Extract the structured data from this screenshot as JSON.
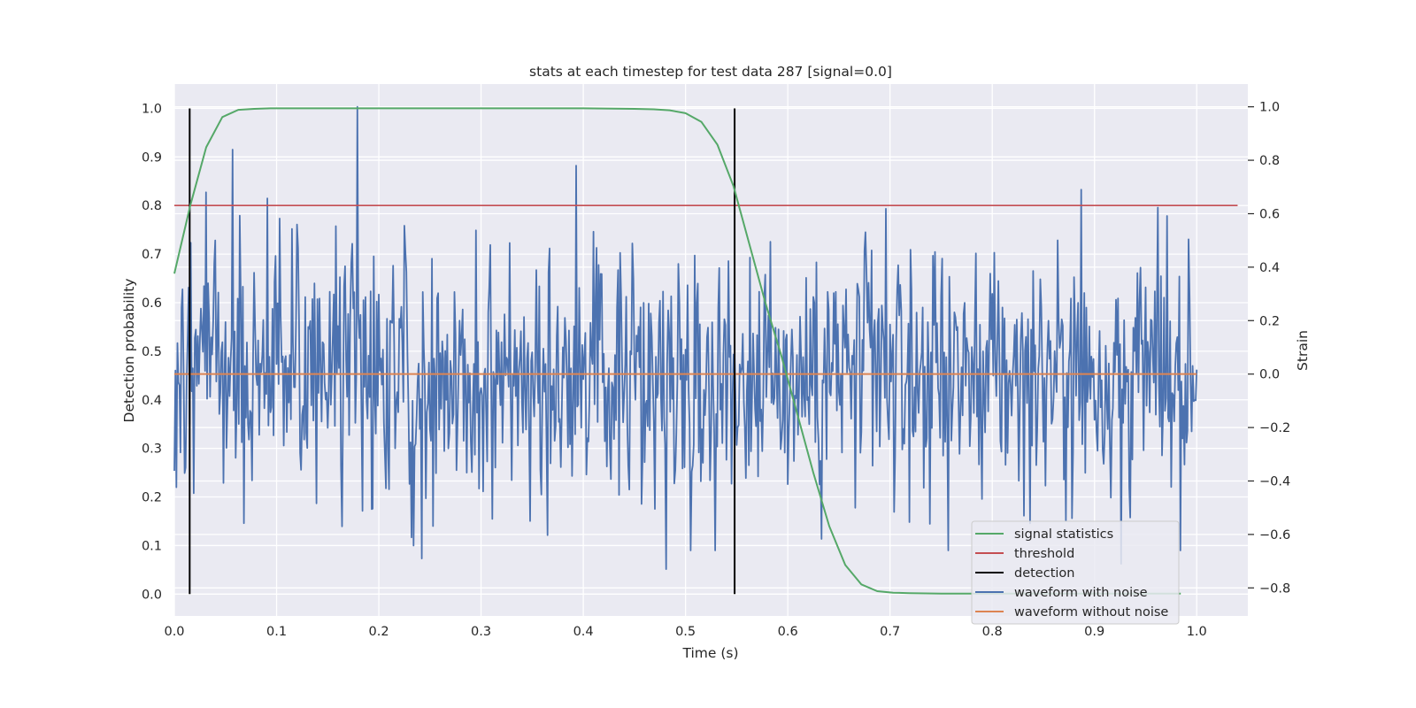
{
  "chart_data": {
    "type": "line",
    "title": "stats at each timestep for test data 287 [signal=0.0]",
    "xlabel": "Time (s)",
    "ylabel_left": "Detection probability",
    "ylabel_right": "Strain",
    "xlim": [
      0.0,
      1.05
    ],
    "ylim_left": [
      -0.045,
      1.05
    ],
    "ylim_right": [
      -0.905,
      1.085
    ],
    "xticks": [
      "0.0",
      "0.1",
      "0.2",
      "0.3",
      "0.4",
      "0.5",
      "0.6",
      "0.7",
      "0.8",
      "0.9",
      "1.0"
    ],
    "yticks_left": [
      "0.0",
      "0.1",
      "0.2",
      "0.3",
      "0.4",
      "0.5",
      "0.6",
      "0.7",
      "0.8",
      "0.9",
      "1.0"
    ],
    "yticks_right": [
      "−0.8",
      "−0.6",
      "−0.4",
      "−0.2",
      "0.0",
      "0.2",
      "0.4",
      "0.6",
      "0.8",
      "1.0"
    ],
    "grid": true,
    "legend_position": "bottom-right",
    "colors": {
      "signal_statistics": "#55a868",
      "threshold": "#c44e52",
      "detection": "#000000",
      "waveform_with_noise": "#4c72b0",
      "waveform_without_noise": "#dd8452",
      "plot_background": "#eaeaf2",
      "grid": "#ffffff"
    },
    "signal_statistics": {
      "name": "signal statistics",
      "axis": "left",
      "x": [
        0.0,
        0.0156,
        0.0312,
        0.0469,
        0.0625,
        0.0781,
        0.0938,
        0.2,
        0.3,
        0.4,
        0.45,
        0.4688,
        0.4844,
        0.5,
        0.5156,
        0.5312,
        0.5469,
        0.5625,
        0.5781,
        0.5938,
        0.6094,
        0.625,
        0.6406,
        0.6562,
        0.6719,
        0.6875,
        0.7031,
        0.7188,
        0.75,
        0.8,
        0.9,
        0.9844
      ],
      "y": [
        0.66,
        0.8,
        0.92,
        0.982,
        0.997,
        0.999,
        1.0,
        1.0,
        1.0,
        1.0,
        0.999,
        0.998,
        0.996,
        0.99,
        0.972,
        0.925,
        0.84,
        0.72,
        0.6,
        0.49,
        0.37,
        0.25,
        0.14,
        0.06,
        0.02,
        0.006,
        0.003,
        0.002,
        0.001,
        0.001,
        0.001,
        0.001
      ]
    },
    "threshold": {
      "name": "threshold",
      "axis": "left",
      "value": 0.8,
      "xrange": [
        0.0,
        1.04
      ]
    },
    "detection": {
      "name": "detection",
      "axis": "left",
      "x": [
        0.015,
        0.548
      ],
      "ymin": 0.0,
      "ymax": 1.0
    },
    "waveform_with_noise": {
      "name": "waveform with noise",
      "axis": "right",
      "x_start": 0.0,
      "x_end": 1.0,
      "y_range_approx": [
        -0.73,
        1.0
      ],
      "notable_peaks": [
        {
          "x": 0.057,
          "y": 0.84
        },
        {
          "x": 0.179,
          "y": 1.0
        },
        {
          "x": 0.393,
          "y": 0.78
        },
        {
          "x": 0.887,
          "y": 0.69
        }
      ],
      "notable_troughs": [
        {
          "x": 0.242,
          "y": -0.69
        },
        {
          "x": 0.481,
          "y": -0.73
        },
        {
          "x": 0.926,
          "y": -0.71
        }
      ]
    },
    "waveform_without_noise": {
      "name": "waveform without noise",
      "axis": "right",
      "value": 0.0,
      "xrange": [
        0.0,
        1.0
      ]
    }
  }
}
